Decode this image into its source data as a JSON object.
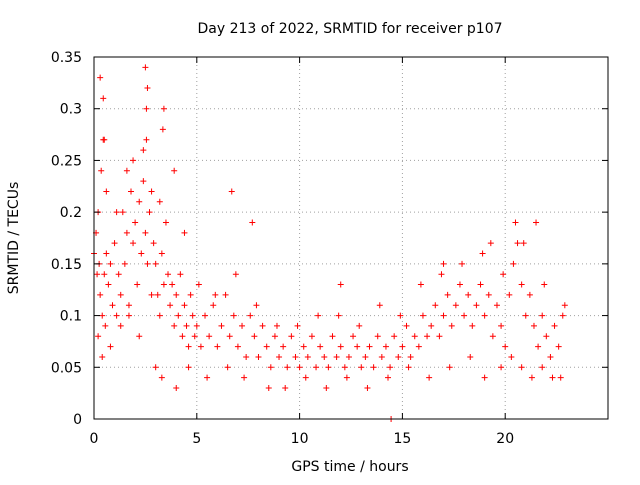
{
  "chart_data": {
    "type": "scatter",
    "title": "Day 213 of 2022, SRMTID for receiver p107",
    "xlabel": "GPS time / hours",
    "ylabel": "SRMTID / TECUs",
    "xlim": [
      0,
      25
    ],
    "ylim": [
      0,
      0.35
    ],
    "xticks": [
      0,
      5,
      10,
      15,
      20
    ],
    "xtick_labels": [
      "0",
      "5",
      "10",
      "15",
      "20"
    ],
    "yticks": [
      0,
      0.05,
      0.1,
      0.15,
      0.2,
      0.25,
      0.3,
      0.35
    ],
    "ytick_labels": [
      "0",
      "0.05",
      "0.1",
      "0.15",
      "0.2",
      "0.25",
      "0.3",
      "0.35"
    ],
    "grid": true,
    "marker": "plus",
    "color": "#ff0000",
    "series": [
      {
        "name": "SRMTID",
        "x": [
          0.0,
          0.1,
          0.15,
          0.2,
          0.25,
          0.3,
          0.35,
          0.4,
          0.45,
          0.5,
          0.55,
          0.6,
          0.7,
          0.8,
          0.9,
          1.0,
          1.1,
          1.2,
          1.3,
          1.4,
          1.5,
          1.6,
          1.7,
          1.8,
          1.9,
          2.0,
          2.1,
          2.2,
          2.3,
          2.4,
          2.5,
          2.55,
          2.6,
          2.7,
          2.8,
          2.9,
          3.0,
          3.1,
          3.2,
          3.3,
          3.4,
          3.5,
          3.6,
          3.7,
          3.8,
          3.9,
          4.0,
          4.1,
          4.2,
          4.3,
          4.4,
          4.5,
          4.6,
          4.7,
          4.8,
          4.9,
          5.0,
          5.2,
          5.4,
          5.6,
          5.8,
          6.0,
          6.2,
          6.4,
          6.6,
          6.8,
          7.0,
          7.2,
          7.4,
          7.6,
          7.8,
          8.0,
          8.2,
          8.4,
          8.6,
          8.8,
          9.0,
          9.2,
          9.4,
          9.6,
          9.8,
          10.0,
          10.2,
          10.4,
          10.6,
          10.8,
          11.0,
          11.2,
          11.4,
          11.6,
          11.8,
          12.0,
          12.2,
          12.4,
          12.6,
          12.8,
          13.0,
          13.2,
          13.4,
          13.6,
          13.8,
          14.0,
          14.2,
          14.4,
          14.45,
          14.6,
          14.8,
          15.0,
          15.2,
          15.4,
          15.6,
          15.8,
          16.0,
          16.2,
          16.4,
          16.6,
          16.8,
          17.0,
          17.2,
          17.4,
          17.6,
          17.8,
          18.0,
          18.2,
          18.4,
          18.6,
          18.8,
          19.0,
          19.2,
          19.4,
          19.6,
          19.8,
          20.0,
          20.2,
          20.4,
          20.6,
          20.8,
          21.0,
          21.2,
          21.4,
          21.6,
          21.8,
          22.0,
          22.2,
          22.4,
          22.6,
          22.8,
          0.3,
          0.45,
          0.5,
          1.6,
          2.5,
          2.6,
          2.55,
          3.4,
          3.35,
          6.7,
          7.7,
          12.0,
          17.0,
          19.3,
          20.5,
          21.5,
          0.2,
          0.4,
          0.8,
          1.3,
          1.7,
          2.2,
          2.8,
          3.0,
          3.3,
          4.0,
          4.6,
          5.5,
          6.5,
          7.3,
          8.5,
          9.3,
          10.3,
          11.3,
          12.3,
          13.3,
          14.3,
          15.3,
          16.3,
          17.3,
          18.3,
          19.0,
          19.8,
          20.3,
          20.8,
          21.3,
          21.8,
          22.3,
          22.7,
          0.6,
          1.1,
          1.9,
          2.4,
          3.2,
          3.9,
          4.4,
          5.1,
          5.9,
          6.9,
          7.9,
          8.9,
          9.9,
          10.9,
          11.9,
          12.9,
          13.9,
          14.9,
          15.9,
          16.9,
          17.9,
          18.9,
          19.9,
          20.9,
          21.9,
          22.9
        ],
        "y": [
          0.16,
          0.18,
          0.14,
          0.2,
          0.15,
          0.12,
          0.24,
          0.1,
          0.27,
          0.14,
          0.09,
          0.16,
          0.13,
          0.15,
          0.11,
          0.17,
          0.1,
          0.14,
          0.12,
          0.2,
          0.15,
          0.18,
          0.11,
          0.22,
          0.17,
          0.19,
          0.13,
          0.21,
          0.16,
          0.23,
          0.18,
          0.27,
          0.15,
          0.2,
          0.22,
          0.17,
          0.15,
          0.12,
          0.1,
          0.16,
          0.13,
          0.19,
          0.14,
          0.11,
          0.13,
          0.09,
          0.12,
          0.1,
          0.14,
          0.08,
          0.11,
          0.09,
          0.07,
          0.12,
          0.1,
          0.08,
          0.09,
          0.07,
          0.1,
          0.08,
          0.11,
          0.07,
          0.09,
          0.12,
          0.08,
          0.1,
          0.07,
          0.09,
          0.06,
          0.1,
          0.08,
          0.06,
          0.09,
          0.07,
          0.05,
          0.08,
          0.06,
          0.07,
          0.05,
          0.08,
          0.06,
          0.05,
          0.07,
          0.06,
          0.08,
          0.05,
          0.07,
          0.06,
          0.05,
          0.08,
          0.06,
          0.07,
          0.05,
          0.06,
          0.08,
          0.07,
          0.05,
          0.06,
          0.07,
          0.05,
          0.08,
          0.06,
          0.07,
          0.05,
          0.0,
          0.08,
          0.06,
          0.07,
          0.09,
          0.06,
          0.08,
          0.07,
          0.1,
          0.08,
          0.09,
          0.11,
          0.08,
          0.1,
          0.12,
          0.09,
          0.11,
          0.13,
          0.1,
          0.12,
          0.09,
          0.11,
          0.13,
          0.1,
          0.12,
          0.08,
          0.11,
          0.09,
          0.07,
          0.12,
          0.15,
          0.17,
          0.13,
          0.1,
          0.12,
          0.09,
          0.07,
          0.1,
          0.08,
          0.06,
          0.09,
          0.07,
          0.1,
          0.33,
          0.31,
          0.27,
          0.24,
          0.34,
          0.32,
          0.3,
          0.3,
          0.28,
          0.22,
          0.19,
          0.13,
          0.15,
          0.17,
          0.19,
          0.19,
          0.08,
          0.06,
          0.07,
          0.09,
          0.1,
          0.08,
          0.12,
          0.05,
          0.04,
          0.03,
          0.05,
          0.04,
          0.05,
          0.04,
          0.03,
          0.03,
          0.04,
          0.03,
          0.04,
          0.03,
          0.04,
          0.05,
          0.04,
          0.05,
          0.06,
          0.04,
          0.05,
          0.06,
          0.05,
          0.04,
          0.05,
          0.04,
          0.04,
          0.22,
          0.2,
          0.25,
          0.26,
          0.21,
          0.24,
          0.18,
          0.13,
          0.12,
          0.14,
          0.11,
          0.09,
          0.09,
          0.1,
          0.1,
          0.09,
          0.11,
          0.1,
          0.13,
          0.14,
          0.15,
          0.16,
          0.14,
          0.17,
          0.13,
          0.11
        ]
      }
    ]
  }
}
